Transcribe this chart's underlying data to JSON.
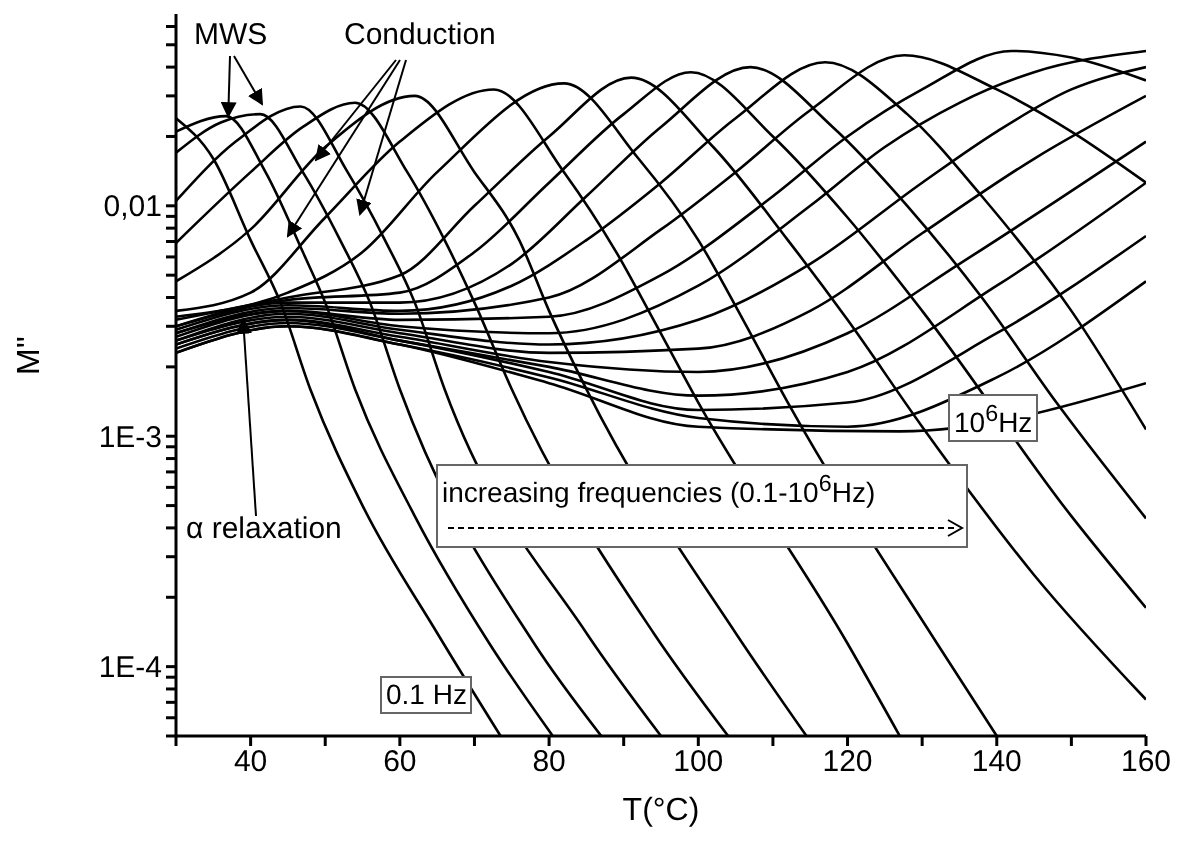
{
  "chart_data": {
    "type": "line",
    "xlabel": "T(°C)",
    "ylabel": "M''",
    "log": "y",
    "marker": "none",
    "xlim": [
      30,
      160
    ],
    "xticks": [
      {
        "value": 30,
        "label": null
      },
      40,
      {
        "value": 50,
        "label": null
      },
      60,
      {
        "value": 70,
        "label": null
      },
      80,
      {
        "value": 90,
        "label": null
      },
      100,
      {
        "value": 110,
        "label": null
      },
      120,
      {
        "value": 130,
        "label": null
      },
      140,
      {
        "value": 150,
        "label": null
      },
      160
    ],
    "ylim": [
      5e-05,
      0.068
    ],
    "yticks": [
      {
        "value": 5e-05,
        "label": null
      },
      {
        "value": 6e-05,
        "label": null
      },
      {
        "value": 7e-05,
        "label": null
      },
      {
        "value": 8e-05,
        "label": null
      },
      {
        "value": 9e-05,
        "label": null
      },
      {
        "value": 0.0001,
        "label": "1E-4"
      },
      {
        "value": 0.0002,
        "label": null
      },
      {
        "value": 0.0003,
        "label": null
      },
      {
        "value": 0.0004,
        "label": null
      },
      {
        "value": 0.0005,
        "label": null
      },
      {
        "value": 0.0006,
        "label": null
      },
      {
        "value": 0.0007,
        "label": null
      },
      {
        "value": 0.0008,
        "label": null
      },
      {
        "value": 0.0009,
        "label": null
      },
      {
        "value": 0.001,
        "label": "1E-3"
      },
      {
        "value": 0.002,
        "label": null
      },
      {
        "value": 0.003,
        "label": null
      },
      {
        "value": 0.004,
        "label": null
      },
      {
        "value": 0.005,
        "label": null
      },
      {
        "value": 0.006,
        "label": null
      },
      {
        "value": 0.007,
        "label": null
      },
      {
        "value": 0.008,
        "label": null
      },
      {
        "value": 0.009,
        "label": null
      },
      {
        "value": 0.01,
        "label": "0,01"
      },
      {
        "value": 0.02,
        "label": null
      },
      {
        "value": 0.03,
        "label": null
      },
      {
        "value": 0.04,
        "label": null
      },
      {
        "value": 0.05,
        "label": null
      },
      {
        "value": 0.06,
        "label": null
      }
    ],
    "annotations": [
      {
        "text": "MWS",
        "x": 37,
        "y": 0.0245
      },
      {
        "text": "Conduction",
        "x": 45,
        "y": 0.0074
      },
      {
        "text": "α relaxation",
        "x": 39,
        "y": 0.0032
      },
      "increasing frequencies (0.1-10$^{6}$Hz)",
      "0.1 Hz",
      "10$^{6}$Hz"
    ],
    "series": [
      {
        "color": "#000000",
        "x": [
          30,
          35,
          40,
          44,
          48,
          55,
          65,
          73.5
        ],
        "values": [
          0.024,
          0.016,
          0.0071,
          0.0038,
          0.0016,
          0.0005,
          0.00014,
          5e-05
        ]
      },
      {
        "color": "#000000",
        "x": [
          30,
          36.7,
          42,
          47,
          50,
          54,
          62,
          72,
          80.5
        ],
        "values": [
          0.021,
          0.0245,
          0.014,
          0.0063,
          0.0038,
          0.0016,
          0.00045,
          0.000126,
          5e-05
        ]
      },
      {
        "color": "#000000",
        "x": [
          30,
          36,
          41.3,
          47,
          52,
          56,
          60,
          78,
          87
        ],
        "values": [
          0.017,
          0.023,
          0.025,
          0.014,
          0.0071,
          0.0038,
          0.0016,
          0.000126,
          5e-05
        ]
      },
      {
        "color": "#000000",
        "x": [
          30,
          38,
          46.7,
          53,
          58,
          62,
          66,
          85,
          95
        ],
        "values": [
          0.0105,
          0.019,
          0.027,
          0.014,
          0.0071,
          0.0038,
          0.0016,
          0.00014,
          5e-05
        ]
      },
      {
        "color": "#000000",
        "x": [
          30,
          40,
          47,
          54,
          61,
          66,
          70,
          75,
          94,
          104
        ],
        "values": [
          0.0069,
          0.014,
          0.022,
          0.028,
          0.014,
          0.0071,
          0.0038,
          0.0016,
          0.00014,
          5e-05
        ]
      },
      {
        "color": "#000000",
        "x": [
          30,
          40,
          50,
          62,
          70,
          76,
          80,
          85,
          105,
          114.5
        ],
        "values": [
          0.0047,
          0.0079,
          0.018,
          0.03,
          0.014,
          0.0071,
          0.0035,
          0.0016,
          0.00014,
          5e-05
        ]
      },
      {
        "color": "#000000",
        "x": [
          30,
          40,
          50,
          60,
          72.6,
          82,
          89,
          94,
          100,
          120,
          127
        ],
        "values": [
          0.0035,
          0.0042,
          0.0089,
          0.019,
          0.032,
          0.014,
          0.0063,
          0.0032,
          0.0014,
          0.000126,
          5e-05
        ]
      },
      {
        "color": "#000000",
        "x": [
          30,
          45,
          55,
          65,
          82,
          92,
          100,
          106,
          112,
          132,
          140
        ],
        "values": [
          0.0033,
          0.0042,
          0.0063,
          0.014,
          0.034,
          0.016,
          0.0071,
          0.0032,
          0.0014,
          0.000126,
          5e-05
        ]
      },
      {
        "color": "#000000",
        "x": [
          30,
          45,
          60,
          70,
          80,
          91,
          102,
          112,
          120,
          130,
          145,
          160
        ],
        "values": [
          0.0032,
          0.004,
          0.005,
          0.01,
          0.02,
          0.036,
          0.018,
          0.0071,
          0.0032,
          0.0011,
          0.00025,
          7.2e-05
        ]
      },
      {
        "color": "#000000",
        "x": [
          30,
          45,
          60,
          70,
          80,
          90,
          99,
          110,
          120,
          130,
          150,
          160
        ],
        "values": [
          0.003,
          0.0039,
          0.0042,
          0.0063,
          0.0126,
          0.025,
          0.038,
          0.02,
          0.0089,
          0.0035,
          0.00045,
          0.00018
        ]
      },
      {
        "color": "#000000",
        "x": [
          30,
          45,
          60,
          75,
          85,
          95,
          107,
          118,
          128,
          138,
          148,
          160
        ],
        "values": [
          0.003,
          0.0038,
          0.0038,
          0.0056,
          0.011,
          0.022,
          0.04,
          0.022,
          0.01,
          0.004,
          0.0014,
          0.00044
        ]
      },
      {
        "color": "#000000",
        "x": [
          30,
          45,
          60,
          75,
          85,
          95,
          105,
          117,
          128,
          138,
          150,
          160
        ],
        "values": [
          0.0029,
          0.0037,
          0.0035,
          0.0045,
          0.0071,
          0.0126,
          0.024,
          0.042,
          0.025,
          0.011,
          0.0035,
          0.00107
        ]
      },
      {
        "color": "#000000",
        "x": [
          30,
          45,
          60,
          80,
          95,
          105,
          115,
          127.6,
          140,
          150,
          160
        ],
        "values": [
          0.0028,
          0.0036,
          0.0034,
          0.004,
          0.0079,
          0.014,
          0.026,
          0.045,
          0.032,
          0.021,
          0.0126
        ]
      },
      {
        "color": "#000000",
        "x": [
          30,
          45,
          60,
          80,
          95,
          110,
          120,
          130,
          142,
          150,
          160
        ],
        "values": [
          0.0028,
          0.0035,
          0.0032,
          0.0033,
          0.005,
          0.011,
          0.02,
          0.032,
          0.047,
          0.044,
          0.035
        ]
      },
      {
        "color": "#000000",
        "x": [
          30,
          45,
          60,
          80,
          100,
          115,
          125,
          135,
          145,
          160
        ],
        "values": [
          0.0027,
          0.0035,
          0.003,
          0.0028,
          0.0045,
          0.01,
          0.018,
          0.028,
          0.038,
          0.047
        ]
      },
      {
        "color": "#000000",
        "x": [
          30,
          45,
          60,
          80,
          100,
          115,
          130,
          140,
          150,
          160
        ],
        "values": [
          0.0026,
          0.0034,
          0.0029,
          0.0025,
          0.0032,
          0.0056,
          0.0126,
          0.021,
          0.032,
          0.04
        ]
      },
      {
        "color": "#000000",
        "x": [
          30,
          45,
          60,
          80,
          100,
          115,
          130,
          145,
          160
        ],
        "values": [
          0.0026,
          0.0033,
          0.0028,
          0.0023,
          0.0024,
          0.0035,
          0.0076,
          0.016,
          0.03
        ]
      },
      {
        "color": "#000000",
        "x": [
          30,
          45,
          60,
          80,
          100,
          120,
          135,
          148,
          160
        ],
        "values": [
          0.0025,
          0.0032,
          0.0027,
          0.0021,
          0.0019,
          0.0028,
          0.0056,
          0.0105,
          0.019
        ]
      },
      {
        "color": "#000000",
        "x": [
          30,
          45,
          60,
          80,
          100,
          120,
          140,
          160
        ],
        "values": [
          0.0025,
          0.0032,
          0.0026,
          0.002,
          0.0015,
          0.0019,
          0.0045,
          0.0126
        ]
      },
      {
        "color": "#000000",
        "x": [
          30,
          45,
          60,
          80,
          100,
          120,
          140,
          160
        ],
        "values": [
          0.0024,
          0.0031,
          0.0026,
          0.0019,
          0.0013,
          0.0014,
          0.0028,
          0.0074
        ]
      },
      {
        "color": "#000000",
        "x": [
          30,
          45,
          60,
          80,
          100,
          120,
          140,
          160
        ],
        "values": [
          0.0023,
          0.003,
          0.0025,
          0.0018,
          0.0012,
          0.0011,
          0.0018,
          0.0047
        ]
      },
      {
        "color": "#000000",
        "x": [
          30,
          45,
          60,
          80,
          100,
          127,
          160
        ],
        "values": [
          0.0023,
          0.003,
          0.0025,
          0.0017,
          0.0011,
          0.00105,
          0.0017
        ]
      }
    ]
  }
}
